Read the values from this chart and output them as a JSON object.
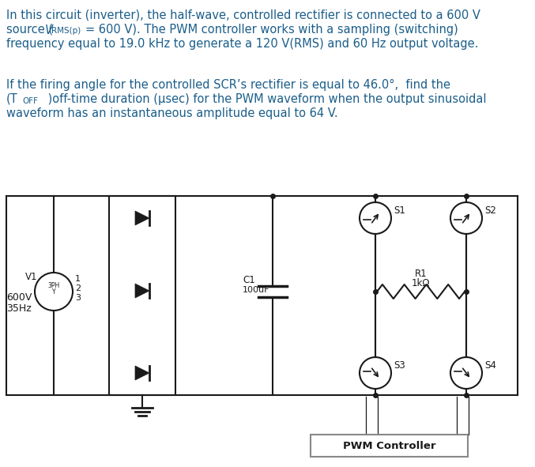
{
  "bg_color": "#ffffff",
  "text_color": "#1B5E8A",
  "lc": "#1a1a1a",
  "fs_main": 10.5,
  "fs_sub": 7.5,
  "fs_circuit": 8.5,
  "fs_circuit_small": 6.0,
  "para1_l1": "In this circuit (inverter), the half-wave, controlled rectifier is connected to a 600 V",
  "para1_l2a": "source (",
  "para1_l2b": "= 600 V). The PWM controller works with a sampling (switching)",
  "para1_l3": "frequency equal to 19.0 kHz to generate a 120 V(RMS) and 60 Hz output voltage.",
  "para2_l1": "If the firing angle for the controlled SCR’s rectifier is equal to 46.0°,  find the",
  "para2_l2a": "(T",
  "para2_l2b": "OFF",
  "para2_l2c": " )off-time duration (μsec) for the PWM waveform when the output sinusoidal",
  "para2_l3": "waveform has an instantaneous amplitude equal to 64 V.",
  "v1_label": "V1",
  "v1_inner_top": "3PH",
  "v1_inner_bot": "Y",
  "v1_t1": "1",
  "v1_t2": "2",
  "v1_t3": "3",
  "v1_val1": "600V",
  "v1_val2": "35Hz",
  "cap_l1": "C1",
  "cap_l2": "═100uF",
  "r1_l1": "R1",
  "r1_l2": "1kΩ",
  "s1": "S1",
  "s2": "S2",
  "s3": "S3",
  "s4": "S4",
  "pwm": "PWM Controller"
}
